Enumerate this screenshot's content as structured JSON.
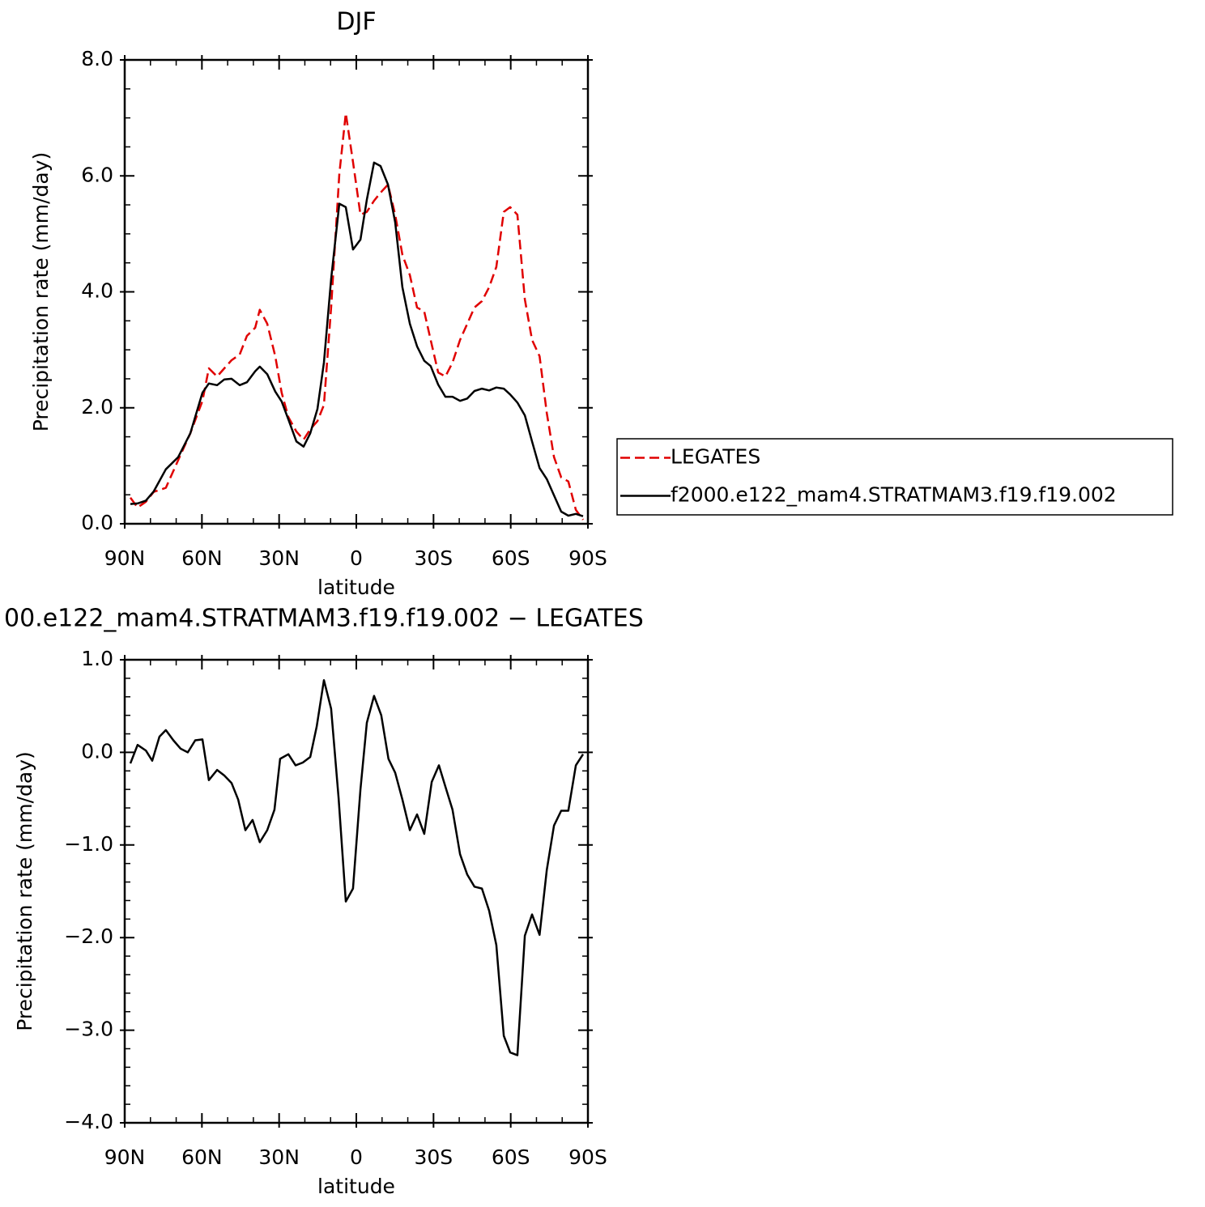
{
  "chart_data": [
    {
      "type": "line",
      "title": "DJF",
      "xlabel": "latitude",
      "ylabel": "Precipitation rate (mm/day)",
      "x": [
        87.8,
        85.0,
        81.8,
        78.7,
        74.0,
        69.2,
        64.5,
        59.8,
        57.3,
        54.1,
        51.3,
        48.5,
        45.3,
        42.5,
        39.3,
        37.5,
        34.6,
        31.5,
        29.0,
        26.4,
        23.3,
        20.5,
        17.9,
        15.1,
        12.6,
        9.8,
        6.6,
        4.1,
        1.3,
        -1.6,
        -4.1,
        -6.9,
        -9.4,
        -12.3,
        -15.1,
        -17.9,
        -20.8,
        -23.6,
        -26.4,
        -28.9,
        -31.8,
        -34.6,
        -37.4,
        -40.3,
        -43.1,
        -45.9,
        -48.8,
        -51.6,
        -54.4,
        -57.3,
        -59.8,
        -62.6,
        -65.5,
        -68.3,
        -71.2,
        -74.0,
        -76.8,
        -79.6,
        -82.4,
        -85.3,
        -88.1
      ],
      "series": [
        {
          "name": "LEGATES",
          "color": "#e00000",
          "dash": true,
          "values": [
            0.45,
            0.28,
            0.38,
            0.55,
            0.62,
            1.1,
            1.56,
            2.12,
            2.68,
            2.54,
            2.68,
            2.82,
            2.92,
            3.24,
            3.38,
            3.69,
            3.45,
            2.89,
            2.26,
            1.84,
            1.59,
            1.45,
            1.63,
            1.77,
            2.05,
            3.73,
            6.03,
            7.08,
            6.24,
            5.33,
            5.38,
            5.57,
            5.71,
            5.85,
            5.33,
            4.64,
            4.29,
            3.73,
            3.66,
            3.17,
            2.61,
            2.54,
            2.78,
            3.17,
            3.45,
            3.73,
            3.84,
            4.08,
            4.43,
            5.38,
            5.46,
            5.33,
            3.87,
            3.17,
            2.89,
            1.91,
            1.15,
            0.8,
            0.73,
            0.24,
            0.07
          ]
        },
        {
          "name": "f2000.e122_mam4.STRATMAM3.f19.f19.002",
          "color": "#000000",
          "dash": false,
          "values": [
            0.34,
            0.35,
            0.4,
            0.56,
            0.94,
            1.15,
            1.56,
            2.26,
            2.42,
            2.39,
            2.49,
            2.5,
            2.39,
            2.44,
            2.63,
            2.71,
            2.58,
            2.28,
            2.11,
            1.8,
            1.42,
            1.33,
            1.56,
            1.98,
            2.78,
            4.22,
            5.52,
            5.46,
            4.73,
            4.9,
            5.59,
            6.23,
            6.17,
            5.85,
            5.2,
            4.08,
            3.45,
            3.06,
            2.81,
            2.72,
            2.4,
            2.19,
            2.19,
            2.12,
            2.16,
            2.29,
            2.33,
            2.3,
            2.35,
            2.33,
            2.23,
            2.09,
            1.87,
            1.42,
            0.96,
            0.77,
            0.49,
            0.21,
            0.14,
            0.17,
            0.13
          ]
        }
      ],
      "xlim": [
        90,
        -90
      ],
      "ylim": [
        0,
        8
      ],
      "xticks": [
        {
          "value": 90,
          "label": "90N"
        },
        {
          "value": 60,
          "label": "60N"
        },
        {
          "value": 30,
          "label": "30N"
        },
        0,
        {
          "value": -30,
          "label": "30S"
        },
        {
          "value": -60,
          "label": "60S"
        },
        {
          "value": -90,
          "label": "90S"
        }
      ],
      "yticks": [
        {
          "value": 0,
          "label": "0.0"
        },
        {
          "value": 2,
          "label": "2.0"
        },
        {
          "value": 4,
          "label": "4.0"
        },
        {
          "value": 6,
          "label": "6.0"
        },
        {
          "value": 8,
          "label": "8.0"
        }
      ],
      "xminorticks": [
        80,
        70,
        50,
        40,
        20,
        10,
        -10,
        -20,
        -40,
        -50,
        -70,
        -80
      ],
      "yminorticks": [
        0.5,
        1,
        1.5,
        2.5,
        3,
        3.5,
        4.5,
        5,
        5.5,
        6.5,
        7,
        7.5
      ],
      "legend": "right"
    },
    {
      "type": "line",
      "title": "00.e122_mam4.STRATMAM3.f19.f19.002 − LEGATES",
      "xlabel": "latitude",
      "ylabel": "Precipitation rate (mm/day)",
      "x": [
        87.8,
        85.0,
        81.8,
        79.3,
        76.5,
        74.0,
        71.1,
        68.3,
        65.5,
        62.6,
        59.8,
        57.3,
        54.1,
        51.3,
        48.5,
        45.9,
        43.1,
        40.3,
        37.5,
        34.6,
        31.8,
        29.6,
        26.4,
        23.6,
        20.8,
        17.9,
        15.4,
        12.6,
        9.8,
        6.9,
        4.1,
        1.3,
        -1.6,
        -4.1,
        -6.9,
        -9.7,
        -12.5,
        -15.1,
        -17.9,
        -20.8,
        -23.6,
        -26.4,
        -29.3,
        -32.1,
        -34.6,
        -37.4,
        -40.3,
        -43.1,
        -45.9,
        -48.8,
        -51.6,
        -54.4,
        -57.3,
        -59.8,
        -62.6,
        -65.5,
        -68.3,
        -71.2,
        -74.0,
        -76.8,
        -79.6,
        -82.4,
        -85.3,
        -88.1
      ],
      "series": [
        {
          "color": "#000000",
          "dash": false,
          "values": [
            -0.12,
            0.08,
            0.02,
            -0.09,
            0.17,
            0.24,
            0.13,
            0.04,
            0.0,
            0.13,
            0.14,
            -0.3,
            -0.19,
            -0.25,
            -0.33,
            -0.51,
            -0.84,
            -0.73,
            -0.97,
            -0.84,
            -0.62,
            -0.07,
            -0.02,
            -0.14,
            -0.11,
            -0.05,
            0.28,
            0.78,
            0.47,
            -0.49,
            -1.61,
            -1.47,
            -0.4,
            0.32,
            0.61,
            0.4,
            -0.07,
            -0.22,
            -0.51,
            -0.84,
            -0.67,
            -0.88,
            -0.32,
            -0.14,
            -0.37,
            -0.62,
            -1.1,
            -1.32,
            -1.45,
            -1.47,
            -1.71,
            -2.08,
            -3.06,
            -3.24,
            -3.27,
            -1.98,
            -1.75,
            -1.97,
            -1.27,
            -0.79,
            -0.63,
            -0.63,
            -0.14,
            -0.02
          ]
        }
      ],
      "xlim": [
        90,
        -90
      ],
      "ylim": [
        -4,
        1
      ],
      "xticks": [
        {
          "value": 90,
          "label": "90N"
        },
        {
          "value": 60,
          "label": "60N"
        },
        {
          "value": 30,
          "label": "30N"
        },
        0,
        {
          "value": -30,
          "label": "30S"
        },
        {
          "value": -60,
          "label": "60S"
        },
        {
          "value": -90,
          "label": "90S"
        }
      ],
      "yticks": [
        {
          "value": -4,
          "label": "−4.0"
        },
        {
          "value": -3,
          "label": "−3.0"
        },
        {
          "value": -2,
          "label": "−2.0"
        },
        {
          "value": -1,
          "label": "−1.0"
        },
        {
          "value": 0,
          "label": "0.0"
        },
        {
          "value": 1,
          "label": "1.0"
        }
      ],
      "xminorticks": [
        80,
        70,
        50,
        40,
        20,
        10,
        -10,
        -20,
        -40,
        -50,
        -70,
        -80
      ],
      "yminorticks": [
        0.8,
        0.6,
        0.4,
        0.2,
        -0.2,
        -0.4,
        -0.6,
        -0.8,
        -1.2,
        -1.4,
        -1.6,
        -1.8,
        -2.2,
        -2.4,
        -2.6,
        -2.8,
        -3.2,
        -3.4,
        -3.6,
        -3.8
      ]
    }
  ]
}
